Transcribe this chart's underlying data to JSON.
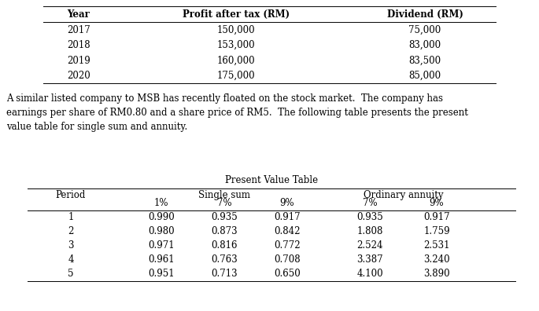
{
  "table1_headers": [
    "Year",
    "Profit after tax (RM)",
    "Dividend (RM)"
  ],
  "table1_rows": [
    [
      "2017",
      "150,000",
      "75,000"
    ],
    [
      "2018",
      "153,000",
      "83,000"
    ],
    [
      "2019",
      "160,000",
      "83,500"
    ],
    [
      "2020",
      "175,000",
      "85,000"
    ]
  ],
  "paragraph_lines": [
    "A similar listed company to MSB has recently floated on the stock market.  The company has",
    "earnings per share of RM0.80 and a share price of RM5.  The following table presents the present",
    "value table for single sum and annuity."
  ],
  "table2_title": "Present Value Table",
  "table2_rows": [
    [
      "1",
      "0.990",
      "0.935",
      "0.917",
      "0.935",
      "0.917"
    ],
    [
      "2",
      "0.980",
      "0.873",
      "0.842",
      "1.808",
      "1.759"
    ],
    [
      "3",
      "0.971",
      "0.816",
      "0.772",
      "2.524",
      "2.531"
    ],
    [
      "4",
      "0.961",
      "0.763",
      "0.708",
      "3.387",
      "3.240"
    ],
    [
      "5",
      "0.951",
      "0.713",
      "0.650",
      "4.100",
      "3.890"
    ]
  ],
  "font_size": 8.5,
  "font_family": "DejaVu Serif",
  "bg_color": "#ffffff",
  "text_color": "#000000"
}
